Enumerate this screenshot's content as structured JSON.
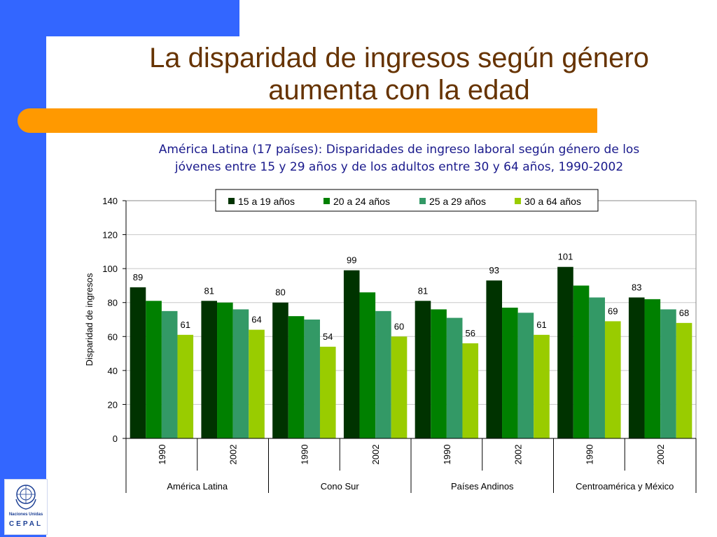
{
  "slide": {
    "title_line1": "La disparidad de ingresos según género",
    "title_line2": "aumenta con la edad",
    "subtitle_line1": "América Latina (17 países): Disparidades de ingreso laboral según género de los",
    "subtitle_line2": "jóvenes entre 15 y 29 años y de los adultos entre 30 y 64 años, 1990-2002"
  },
  "logo": {
    "org": "Naciones Unidas",
    "name": "CEPAL"
  },
  "colors": {
    "slide_blue": "#3366ff",
    "orange": "#ff9900",
    "title": "#663300",
    "subtitle": "#1a1a8c"
  },
  "chart_data": {
    "type": "bar",
    "ylabel": "Disparidad de ingresos",
    "ylim": [
      0,
      140
    ],
    "yticks": [
      0,
      20,
      40,
      60,
      80,
      100,
      120,
      140
    ],
    "grid": true,
    "legend_position": "top",
    "groups": [
      "América Latina",
      "Cono Sur",
      "Países Andinos",
      "Centroamérica y México"
    ],
    "years": [
      "1990",
      "2002"
    ],
    "categories": [
      {
        "group": "América Latina",
        "year": "1990"
      },
      {
        "group": "América Latina",
        "year": "2002"
      },
      {
        "group": "Cono Sur",
        "year": "1990"
      },
      {
        "group": "Cono Sur",
        "year": "2002"
      },
      {
        "group": "Países Andinos",
        "year": "1990"
      },
      {
        "group": "Países Andinos",
        "year": "2002"
      },
      {
        "group": "Centroamérica y México",
        "year": "1990"
      },
      {
        "group": "Centroamérica y México",
        "year": "2002"
      }
    ],
    "series": [
      {
        "name": "15 a 19 años",
        "color": "#003300",
        "values": [
          89,
          81,
          80,
          99,
          81,
          93,
          101,
          83
        ],
        "labeled": true
      },
      {
        "name": "20 a 24 años",
        "color": "#008000",
        "values": [
          81,
          80,
          72,
          86,
          76,
          77,
          90,
          82
        ],
        "labeled": false
      },
      {
        "name": "25 a 29 años",
        "color": "#339966",
        "values": [
          75,
          76,
          70,
          75,
          71,
          74,
          83,
          76
        ],
        "labeled": false
      },
      {
        "name": "30 a 64 años",
        "color": "#99cc00",
        "values": [
          61,
          64,
          54,
          60,
          56,
          61,
          69,
          68
        ],
        "labeled": true
      }
    ]
  }
}
